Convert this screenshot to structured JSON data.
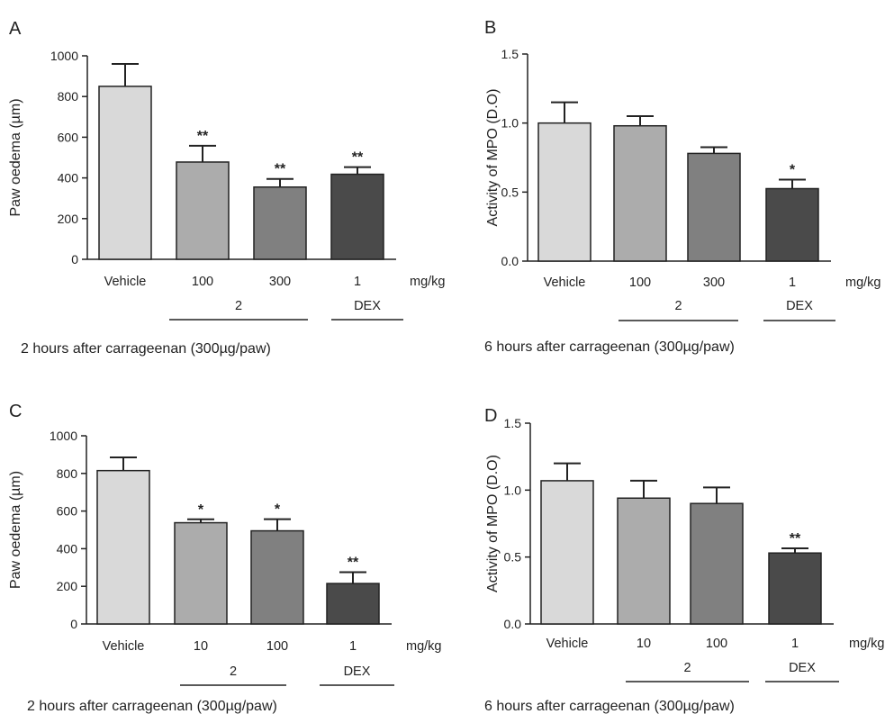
{
  "bar_colors": [
    "#d9d9d9",
    "#acacac",
    "#808080",
    "#4a4a4a"
  ],
  "chart_data": [
    {
      "type": "bar",
      "panel": "A",
      "ylabel": "Paw oedema (µm)",
      "ylim": [
        0,
        1000
      ],
      "yticks": [
        "0",
        "200",
        "400",
        "600",
        "800",
        "1000"
      ],
      "categories": [
        "Vehicle",
        "100",
        "300",
        "1"
      ],
      "unit": "mg/kg",
      "groups": [
        {
          "label": "2",
          "from": 1,
          "to": 2
        },
        {
          "label": "DEX",
          "from": 3,
          "to": 3
        }
      ],
      "values": [
        850,
        478,
        355,
        418
      ],
      "errors": [
        110,
        80,
        40,
        35
      ],
      "significance": [
        "",
        "**",
        "**",
        "**"
      ],
      "caption": "2 hours after carrageenan (300µg/paw)"
    },
    {
      "type": "bar",
      "panel": "B",
      "ylabel": "Activity of MPO (D.O)",
      "ylim": [
        0,
        1.5
      ],
      "yticks": [
        "0.0",
        "0.5",
        "1.0",
        "1.5"
      ],
      "categories": [
        "Vehicle",
        "100",
        "300",
        "1"
      ],
      "unit": "mg/kg",
      "groups": [
        {
          "label": "2",
          "from": 1,
          "to": 2
        },
        {
          "label": "DEX",
          "from": 3,
          "to": 3
        }
      ],
      "values": [
        1.0,
        0.98,
        0.78,
        0.525
      ],
      "errors": [
        0.15,
        0.07,
        0.045,
        0.065
      ],
      "significance": [
        "",
        "",
        "",
        "*"
      ],
      "caption": "6 hours after carrageenan (300µg/paw)"
    },
    {
      "type": "bar",
      "panel": "C",
      "ylabel": "Paw oedema (µm)",
      "ylim": [
        0,
        1000
      ],
      "yticks": [
        "0",
        "200",
        "400",
        "600",
        "800",
        "1000"
      ],
      "categories": [
        "Vehicle",
        "10",
        "100",
        "1"
      ],
      "unit": "mg/kg",
      "groups": [
        {
          "label": "2",
          "from": 1,
          "to": 2
        },
        {
          "label": "DEX",
          "from": 3,
          "to": 3
        }
      ],
      "values": [
        815,
        538,
        495,
        215
      ],
      "errors": [
        70,
        18,
        62,
        60
      ],
      "significance": [
        "",
        "*",
        "*",
        "**"
      ],
      "caption": "2 hours after carrageenan (300µg/paw)"
    },
    {
      "type": "bar",
      "panel": "D",
      "ylabel": "Activity of MPO (D.O)",
      "ylim": [
        0,
        1.5
      ],
      "yticks": [
        "0.0",
        "0.5",
        "1.0",
        "1.5"
      ],
      "categories": [
        "Vehicle",
        "10",
        "100",
        "1"
      ],
      "unit": "mg/kg",
      "groups": [
        {
          "label": "2",
          "from": 1,
          "to": 2
        },
        {
          "label": "DEX",
          "from": 3,
          "to": 3
        }
      ],
      "values": [
        1.07,
        0.94,
        0.9,
        0.53
      ],
      "errors": [
        0.13,
        0.13,
        0.12,
        0.035
      ],
      "significance": [
        "",
        "",
        "",
        "**"
      ],
      "caption": "6 hours after carrageenan (300µg/paw)"
    }
  ]
}
